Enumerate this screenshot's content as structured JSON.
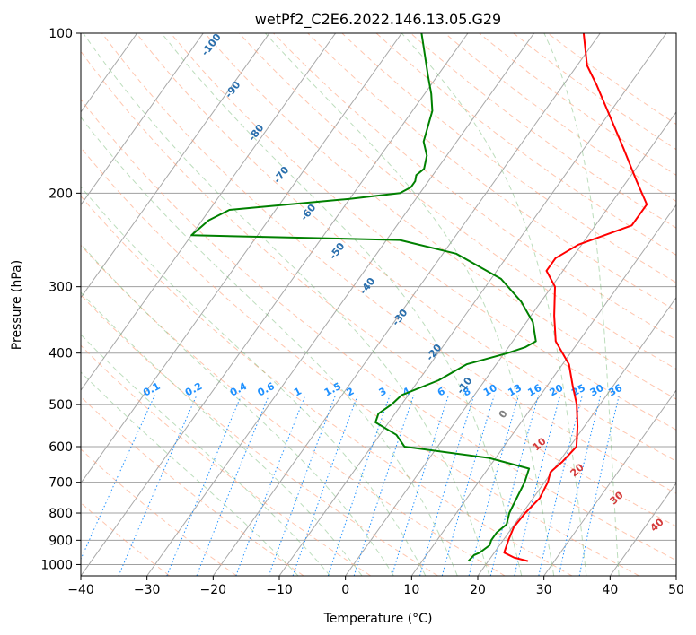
{
  "chart_data": {
    "type": "line",
    "title": "wetPf2_C2E6.2022.146.13.05.G29",
    "xlabel": "Temperature (°C)",
    "ylabel": "Pressure (hPa)",
    "xlim": [
      -40,
      50
    ],
    "ylim": [
      1050,
      100
    ],
    "x_ticks": [
      "−40",
      "−30",
      "−20",
      "−10",
      "0",
      "10",
      "20",
      "30",
      "40",
      "50"
    ],
    "y_ticks": [
      "100",
      "200",
      "300",
      "400",
      "500",
      "600",
      "700",
      "800",
      "900",
      "1000"
    ],
    "series": [
      {
        "name": "temperature",
        "color": "#ff0000",
        "points": [
          [
            26.0,
            985
          ],
          [
            23.5,
            970
          ],
          [
            21.5,
            950
          ],
          [
            20.8,
            900
          ],
          [
            20.2,
            850
          ],
          [
            20.4,
            800
          ],
          [
            21.0,
            750
          ],
          [
            20.5,
            700
          ],
          [
            19.8,
            670
          ],
          [
            20.5,
            640
          ],
          [
            21.0,
            600
          ],
          [
            19.0,
            550
          ],
          [
            16.5,
            500
          ],
          [
            13.8,
            460
          ],
          [
            11.0,
            420
          ],
          [
            6.5,
            380
          ],
          [
            3.5,
            340
          ],
          [
            0.5,
            300
          ],
          [
            -2.5,
            280
          ],
          [
            -2.5,
            265
          ],
          [
            -0.5,
            250
          ],
          [
            5.5,
            230
          ],
          [
            5.5,
            210
          ],
          [
            1.5,
            190
          ],
          [
            -4.0,
            165
          ],
          [
            -10.5,
            140
          ],
          [
            -15.0,
            125
          ],
          [
            -18.5,
            115
          ],
          [
            -22.5,
            100
          ]
        ]
      },
      {
        "name": "dewpoint",
        "color": "#008000",
        "points": [
          [
            17.0,
            985
          ],
          [
            17.2,
            960
          ],
          [
            17.8,
            950
          ],
          [
            18.5,
            920
          ],
          [
            18.2,
            900
          ],
          [
            18.2,
            870
          ],
          [
            18.8,
            840
          ],
          [
            18.0,
            800
          ],
          [
            17.5,
            750
          ],
          [
            17.0,
            700
          ],
          [
            16.2,
            660
          ],
          [
            9.0,
            630
          ],
          [
            -5.0,
            600
          ],
          [
            -7.5,
            570
          ],
          [
            -12.0,
            540
          ],
          [
            -12.5,
            520
          ],
          [
            -11.5,
            500
          ],
          [
            -11.0,
            480
          ],
          [
            -7.0,
            450
          ],
          [
            -4.5,
            420
          ],
          [
            0.5,
            400
          ],
          [
            2.5,
            390
          ],
          [
            3.5,
            380
          ],
          [
            1.0,
            350
          ],
          [
            -3.0,
            320
          ],
          [
            -8.5,
            290
          ],
          [
            -18.0,
            260
          ],
          [
            -28.0,
            245
          ],
          [
            -60.0,
            240
          ],
          [
            -59.0,
            225
          ],
          [
            -57.0,
            215
          ],
          [
            -40.0,
            205
          ],
          [
            -33.0,
            200
          ],
          [
            -32.0,
            195
          ],
          [
            -32.0,
            190
          ],
          [
            -32.5,
            185
          ],
          [
            -32.0,
            180
          ],
          [
            -33.0,
            170
          ],
          [
            -35.0,
            160
          ],
          [
            -37.0,
            140
          ],
          [
            -39.0,
            130
          ],
          [
            -41.5,
            120
          ],
          [
            -47.0,
            100
          ]
        ]
      }
    ],
    "mixing_ratio_labels": [
      "0.1",
      "0.2",
      "0.4",
      "0.6",
      "1",
      "1.5",
      "2",
      "3",
      "4",
      "6",
      "8",
      "10",
      "13",
      "16",
      "20",
      "25",
      "30",
      "36"
    ],
    "dry_adiabat_labels": [
      "-100",
      "-90",
      "-80",
      "-70",
      "-60",
      "-50",
      "-40",
      "-30",
      "-20",
      "-10",
      "0"
    ],
    "moist_adiabat_labels": [
      "10",
      "20",
      "30",
      "40"
    ]
  }
}
